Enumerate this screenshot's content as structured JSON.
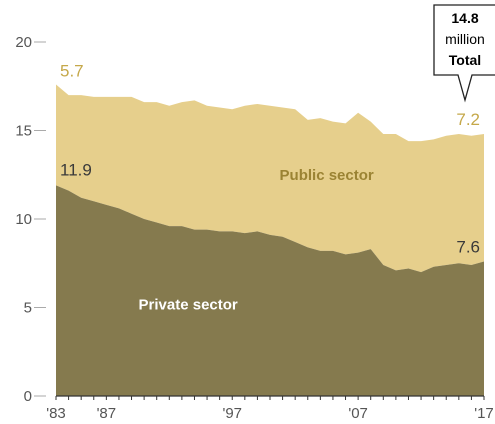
{
  "chart_data": {
    "type": "area",
    "stacked": true,
    "x": [
      1983,
      1984,
      1985,
      1986,
      1987,
      1988,
      1989,
      1990,
      1991,
      1992,
      1993,
      1994,
      1995,
      1996,
      1997,
      1998,
      1999,
      2000,
      2001,
      2002,
      2003,
      2004,
      2005,
      2006,
      2007,
      2008,
      2009,
      2010,
      2011,
      2012,
      2013,
      2014,
      2015,
      2016,
      2017
    ],
    "series": [
      {
        "name": "Private sector",
        "color": "#857a4e",
        "values": [
          11.9,
          11.6,
          11.2,
          11.0,
          10.8,
          10.6,
          10.3,
          10.0,
          9.8,
          9.6,
          9.6,
          9.4,
          9.4,
          9.3,
          9.3,
          9.2,
          9.3,
          9.1,
          9.0,
          8.7,
          8.4,
          8.2,
          8.2,
          8.0,
          8.1,
          8.3,
          7.4,
          7.1,
          7.2,
          7.0,
          7.3,
          7.4,
          7.5,
          7.4,
          7.6
        ]
      },
      {
        "name": "Public sector",
        "color": "#e6cf8c",
        "values": [
          5.7,
          5.4,
          5.8,
          5.9,
          6.1,
          6.3,
          6.6,
          6.6,
          6.8,
          6.8,
          7.0,
          7.3,
          7.0,
          7.0,
          6.9,
          7.2,
          7.2,
          7.3,
          7.3,
          7.5,
          7.2,
          7.5,
          7.3,
          7.4,
          7.9,
          7.2,
          7.4,
          7.7,
          7.2,
          7.4,
          7.2,
          7.3,
          7.3,
          7.3,
          7.2
        ]
      }
    ],
    "ylim": [
      0,
      20
    ],
    "yticks": [
      0,
      5,
      10,
      15,
      20
    ],
    "xtick_labels": [
      {
        "year": 1983,
        "label": "'83"
      },
      {
        "year": 1987,
        "label": "'87"
      },
      {
        "year": 1997,
        "label": "'97"
      },
      {
        "year": 2007,
        "label": "'07"
      },
      {
        "year": 2017,
        "label": "'17"
      }
    ],
    "data_labels": {
      "public_start": "5.7",
      "private_start": "11.9",
      "public_end": "7.2",
      "private_end": "7.6"
    },
    "series_labels": {
      "public": "Public sector",
      "private": "Private sector"
    },
    "callout": {
      "value": "14.8",
      "unit": "million",
      "label": "Total"
    },
    "colors": {
      "public_label": "#c5a84a",
      "public_area_label": "#9b8333",
      "private_label": "#3a3a3a",
      "private_area_label": "#ffffff",
      "axis": "#aaaaaa"
    }
  }
}
